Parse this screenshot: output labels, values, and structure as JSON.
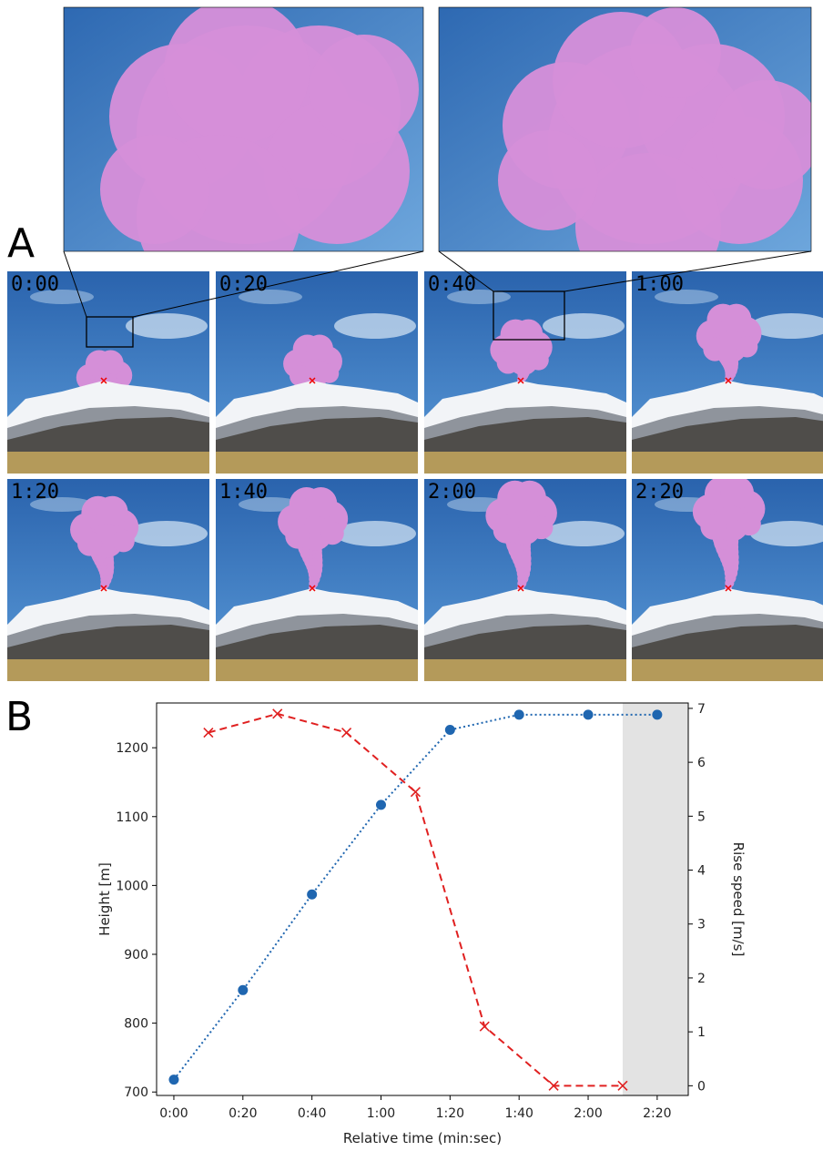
{
  "panel_labels": {
    "a": "A",
    "b": "B"
  },
  "frames": [
    {
      "time": "0:00",
      "plume": 0.22,
      "zoom_box": true
    },
    {
      "time": "0:20",
      "plume": 0.36
    },
    {
      "time": "0:40",
      "plume": 0.5,
      "zoom_box": true
    },
    {
      "time": "1:00",
      "plume": 0.64
    },
    {
      "time": "1:20",
      "plume": 0.78
    },
    {
      "time": "1:40",
      "plume": 0.86
    },
    {
      "time": "2:00",
      "plume": 0.92
    },
    {
      "time": "2:20",
      "plume": 0.96
    }
  ],
  "colors": {
    "sky": "#2f6fb8",
    "plume": "#d58fd8",
    "snow": "#f2f4f7",
    "grass": "#b49a5a",
    "height_series": "#1f66b0",
    "speed_series": "#e02020",
    "shade": "#e3e3e3"
  },
  "chart_data": {
    "type": "line",
    "xlabel": "Relative time (min:sec)",
    "ylabel": "Height [m]",
    "y2label": "Rise speed [m/s]",
    "x_ticks": [
      "0:00",
      "0:20",
      "0:40",
      "1:00",
      "1:20",
      "1:40",
      "2:00",
      "2:20"
    ],
    "xlim": [
      -0.25,
      7.45
    ],
    "ylim": [
      695,
      1265
    ],
    "y_ticks": [
      700,
      800,
      900,
      1000,
      1100,
      1200
    ],
    "y2lim": [
      -0.18,
      7.1
    ],
    "y2_ticks": [
      0,
      1,
      2,
      3,
      4,
      5,
      6,
      7
    ],
    "shaded_region": {
      "x": [
        6.5,
        7.45
      ]
    },
    "series": [
      {
        "axis": "left",
        "marker": "circle",
        "style": "dotted",
        "x": [
          0,
          1,
          2,
          3,
          4,
          5,
          6,
          7
        ],
        "y": [
          718,
          848,
          987,
          1117,
          1226,
          1248,
          1248,
          1248
        ]
      },
      {
        "axis": "right",
        "marker": "x",
        "style": "dashed",
        "x": [
          0.5,
          1.5,
          2.5,
          3.5,
          4.5,
          5.5,
          6.5
        ],
        "y": [
          6.55,
          6.9,
          6.55,
          5.45,
          1.1,
          0.0,
          0.0
        ]
      }
    ]
  }
}
